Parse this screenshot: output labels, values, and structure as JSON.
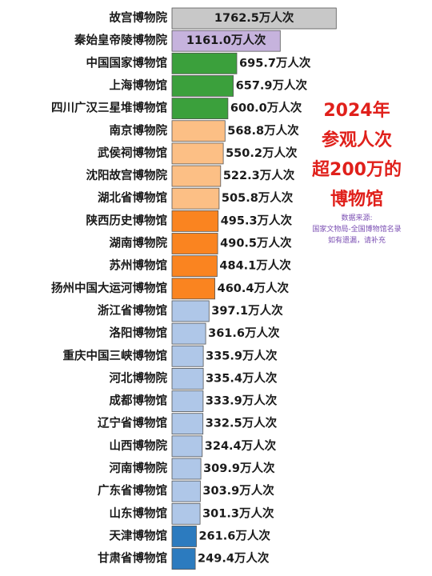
{
  "chart_data": {
    "type": "bar",
    "orientation": "horizontal",
    "unit_suffix": "万人次",
    "categories": [
      "故宫博物院",
      "秦始皇帝陵博物院",
      "中国国家博物馆",
      "上海博物馆",
      "四川广汉三星堆博物馆",
      "南京博物院",
      "武侯祠博物馆",
      "沈阳故宫博物院",
      "湖北省博物馆",
      "陕西历史博物馆",
      "湖南博物院",
      "苏州博物馆",
      "扬州中国大运河博物馆",
      "浙江省博物馆",
      "洛阳博物馆",
      "重庆中国三峡博物馆",
      "河北博物院",
      "成都博物馆",
      "辽宁省博物馆",
      "山西博物院",
      "河南博物院",
      "广东省博物馆",
      "山东博物馆",
      "天津博物馆",
      "甘肃省博物馆"
    ],
    "values": [
      1762.5,
      1161.0,
      695.7,
      657.9,
      600.0,
      568.8,
      550.2,
      522.3,
      505.8,
      495.3,
      490.5,
      484.1,
      460.4,
      397.1,
      361.6,
      335.9,
      335.4,
      333.9,
      332.5,
      324.4,
      309.9,
      303.9,
      301.3,
      261.6,
      249.4
    ],
    "value_labels": [
      "1762.5万人次",
      "1161.0万人次",
      "695.7万人次",
      "657.9万人次",
      "600.0万人次",
      "568.8万人次",
      "550.2万人次",
      "522.3万人次",
      "505.8万人次",
      "495.3万人次",
      "490.5万人次",
      "484.1万人次",
      "460.4万人次",
      "397.1万人次",
      "361.6万人次",
      "335.9万人次",
      "335.4万人次",
      "333.9万人次",
      "332.5万人次",
      "324.4万人次",
      "309.9万人次",
      "303.9万人次",
      "301.3万人次",
      "261.6万人次",
      "249.4万人次"
    ],
    "bar_colors": [
      "#c8c8c8",
      "#c6b3dd",
      "#3ba03c",
      "#3ba03c",
      "#3ba03c",
      "#fcbf85",
      "#fcbf85",
      "#fcbf85",
      "#fcbf85",
      "#fa8420",
      "#fa8420",
      "#fa8420",
      "#fa8420",
      "#afc7e8",
      "#afc7e8",
      "#afc7e8",
      "#afc7e8",
      "#afc7e8",
      "#afc7e8",
      "#afc7e8",
      "#afc7e8",
      "#afc7e8",
      "#afc7e8",
      "#2c7bbf",
      "#2c7bbf"
    ],
    "value_label_inside": [
      true,
      true,
      false,
      false,
      false,
      false,
      false,
      false,
      false,
      false,
      false,
      false,
      false,
      false,
      false,
      false,
      false,
      false,
      false,
      false,
      false,
      false,
      false,
      false,
      false
    ],
    "annotation": {
      "title_lines": [
        "2024年",
        "参观人次",
        "超200万的",
        "博物馆"
      ],
      "source_lines": [
        "数据来源:",
        "国家文物局-全国博物馆名录",
        "如有遗漏，请补充"
      ],
      "title_color": "#e0201b",
      "source_color": "#7b4fb3"
    },
    "grid": false,
    "legend": "none"
  }
}
